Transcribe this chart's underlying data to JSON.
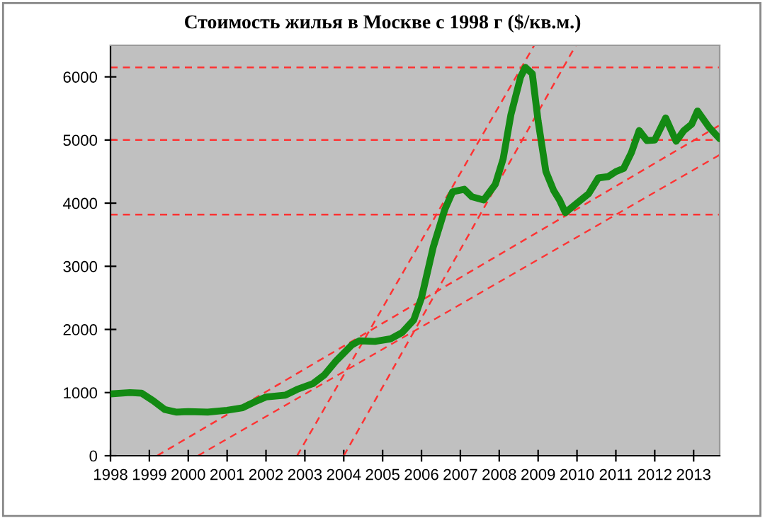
{
  "chart_data": {
    "type": "line",
    "title": "Стоимость жилья в Москве с 1998 г ($/кв.м.)",
    "xlim": [
      1998,
      2013.67
    ],
    "xticks": [
      1998,
      1999,
      2000,
      2001,
      2002,
      2003,
      2004,
      2005,
      2006,
      2007,
      2008,
      2009,
      2010,
      2011,
      2012,
      2013
    ],
    "ylim": [
      0,
      6500
    ],
    "yticks": [
      0,
      1000,
      2000,
      3000,
      4000,
      5000,
      6000
    ],
    "grid": false,
    "legend": false,
    "series": [
      {
        "color": "#138a13",
        "line_style": "solid",
        "x": [
          1998,
          1998.5,
          1998.8,
          1999.1,
          1999.4,
          1999.7,
          2000,
          2000.5,
          2001,
          2001.4,
          2001.7,
          2002,
          2002.5,
          2002.8,
          2003.2,
          2003.5,
          2003.8,
          2004.2,
          2004.4,
          2004.8,
          2005.2,
          2005.5,
          2005.8,
          2006,
          2006.3,
          2006.6,
          2006.8,
          2007.1,
          2007.3,
          2007.6,
          2007.9,
          2008.1,
          2008.3,
          2008.55,
          2008.67,
          2008.85,
          2009.0,
          2009.2,
          2009.4,
          2009.55,
          2009.7,
          2010.0,
          2010.3,
          2010.55,
          2010.8,
          2011.0,
          2011.2,
          2011.4,
          2011.6,
          2011.8,
          2012.0,
          2012.28,
          2012.55,
          2012.75,
          2012.95,
          2013.1,
          2013.4,
          2013.67
        ],
        "values": [
          980,
          1000,
          990,
          870,
          730,
          690,
          700,
          690,
          720,
          760,
          850,
          930,
          960,
          1050,
          1140,
          1280,
          1500,
          1750,
          1820,
          1810,
          1850,
          1950,
          2150,
          2500,
          3300,
          3900,
          4180,
          4220,
          4100,
          4050,
          4300,
          4700,
          5400,
          6000,
          6150,
          6050,
          5300,
          4500,
          4200,
          4050,
          3850,
          4000,
          4150,
          4400,
          4420,
          4500,
          4550,
          4800,
          5150,
          4990,
          5000,
          5350,
          4980,
          5150,
          5250,
          5460,
          5200,
          5020
        ]
      },
      {
        "color": "#ff3333",
        "line_style": "dashed",
        "x": [
          1999.2,
          2013.67
        ],
        "values": [
          0,
          5235
        ]
      },
      {
        "color": "#ff3333",
        "line_style": "dashed",
        "x": [
          2000.25,
          2013.67
        ],
        "values": [
          0,
          4765
        ]
      },
      {
        "color": "#ff3333",
        "line_style": "dashed",
        "x": [
          2002.8,
          2008.9
        ],
        "values": [
          0,
          6500
        ]
      },
      {
        "color": "#ff3333",
        "line_style": "dashed",
        "x": [
          2004,
          2009.97
        ],
        "values": [
          0,
          6500
        ]
      }
    ],
    "ref_lines": [
      {
        "axis": "y",
        "value": 6150,
        "color": "#ff3333",
        "line_style": "dashed"
      },
      {
        "axis": "y",
        "value": 5000,
        "color": "#ff3333",
        "line_style": "dashed"
      },
      {
        "axis": "y",
        "value": 3820,
        "color": "#ff3333",
        "line_style": "dashed"
      }
    ]
  }
}
